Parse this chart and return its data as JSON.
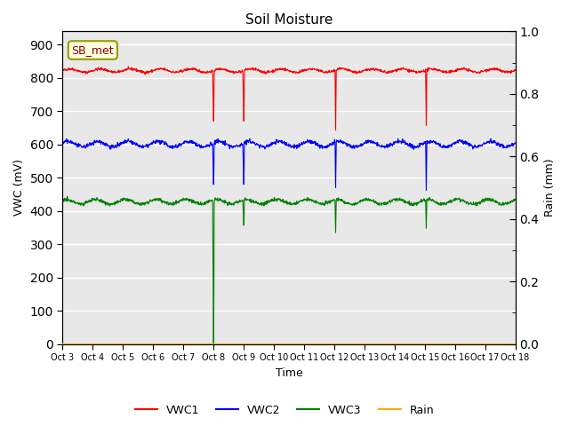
{
  "title": "Soil Moisture",
  "xlabel": "Time",
  "ylabel_left": "VWC (mV)",
  "ylabel_right": "Rain (mm)",
  "ylim_left": [
    0,
    940
  ],
  "ylim_right": [
    0.0,
    1.0
  ],
  "yticks_left": [
    0,
    100,
    200,
    300,
    400,
    500,
    600,
    700,
    800,
    900
  ],
  "yticks_right": [
    0.0,
    0.2,
    0.4,
    0.6,
    0.8,
    1.0
  ],
  "yticks_right_minor": [
    0.1,
    0.3,
    0.5,
    0.7,
    0.9
  ],
  "xtick_labels": [
    "Oct 3",
    "Oct 4",
    "Oct 5",
    "Oct 6",
    "Oct 7",
    "Oct 8",
    "Oct 9",
    "Oct 10",
    "Oct 11",
    "Oct 12",
    "Oct 13",
    "Oct 14",
    "Oct 15",
    "Oct 16",
    "Oct 17",
    "Oct 18"
  ],
  "station_label": "SB_met",
  "vwc1_color": "red",
  "vwc2_color": "blue",
  "vwc3_color": "green",
  "rain_color": "#FFA500",
  "background_color": "#E8E8E8",
  "fig_bg": "white",
  "n_points": 1440,
  "vwc1_base": 822,
  "vwc2_base": 601,
  "vwc3_base": 428,
  "spikes_red": [
    {
      "day": 5.0,
      "y_min": 670
    },
    {
      "day": 6.0,
      "y_min": 670
    },
    {
      "day": 9.05,
      "y_min": 643
    },
    {
      "day": 12.05,
      "y_min": 657
    }
  ],
  "spikes_blue": [
    {
      "day": 5.0,
      "y_min": 480
    },
    {
      "day": 6.0,
      "y_min": 480
    },
    {
      "day": 9.05,
      "y_min": 470
    },
    {
      "day": 12.05,
      "y_min": 462
    }
  ],
  "spikes_green": [
    {
      "day": 5.0,
      "y_min": 0
    },
    {
      "day": 6.0,
      "y_min": 357
    },
    {
      "day": 9.05,
      "y_min": 335
    },
    {
      "day": 12.05,
      "y_min": 348
    }
  ],
  "grid_color": "white",
  "grid_lw": 1.0
}
